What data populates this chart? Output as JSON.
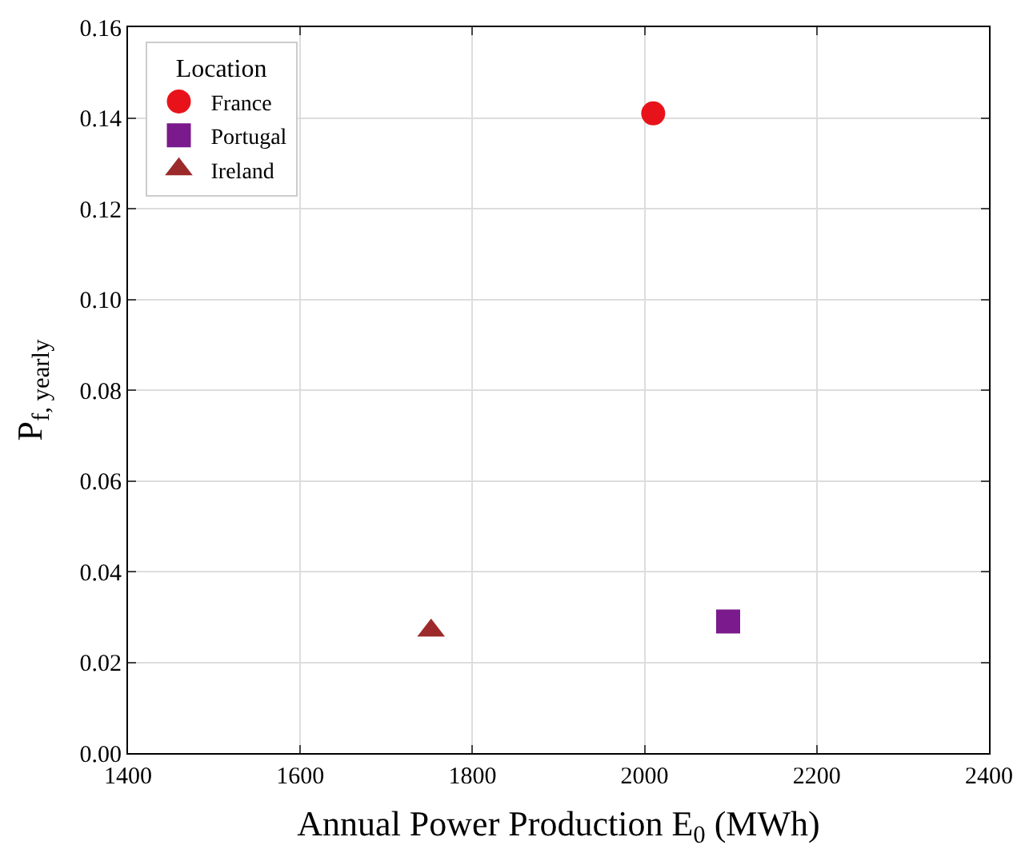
{
  "chart_data": {
    "type": "scatter",
    "xlabel": "Annual Power Production E$_{0}$ (MWh)",
    "ylabel": "P$_{f, yearly}$",
    "legend_title": "Location",
    "legend": "top left",
    "grid": true,
    "xlim": [
      1400,
      2400
    ],
    "xticks": [
      1400,
      1600,
      1800,
      2000,
      2200,
      2400
    ],
    "ylim": [
      0,
      0.16
    ],
    "yticks": [
      {
        "value": 0,
        "label": "0.00"
      },
      0.02,
      0.04,
      0.06,
      0.08,
      {
        "value": 0.1,
        "label": "0.10"
      },
      0.12,
      0.14,
      0.16
    ],
    "series": [
      {
        "name": "France",
        "color": "#e8131a",
        "marker": "circle",
        "x": [
          2010
        ],
        "values": [
          0.141
        ]
      },
      {
        "name": "Portugal",
        "color": "#7a1a8c",
        "marker": "square",
        "x": [
          2097
        ],
        "values": [
          0.029
        ]
      },
      {
        "name": "Ireland",
        "color": "#9c2a2a",
        "marker": "triangle",
        "x": [
          1752
        ],
        "values": [
          0.027
        ]
      }
    ]
  }
}
